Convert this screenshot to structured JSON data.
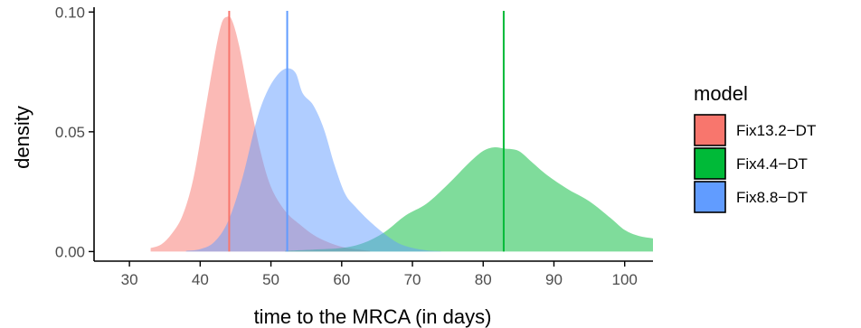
{
  "chart_data": {
    "type": "area",
    "title": "",
    "xlabel": "time to the MRCA (in days)",
    "ylabel": "density",
    "xlim": [
      25,
      104
    ],
    "ylim": [
      -0.004,
      0.102
    ],
    "xticks": [
      30,
      40,
      50,
      60,
      70,
      80,
      90,
      100
    ],
    "yticks": [
      0.0,
      0.05,
      0.1
    ],
    "ytick_labels": [
      "0.00",
      "0.05",
      "0.10"
    ],
    "grid": false,
    "legend": {
      "title": "model",
      "position": "right"
    },
    "series": [
      {
        "name": "Fix13.2−DT",
        "color": "#F8766D",
        "mean": 44.1,
        "points": [
          [
            33,
            0.0015
          ],
          [
            34.5,
            0.003
          ],
          [
            36,
            0.0075
          ],
          [
            37.5,
            0.015
          ],
          [
            39,
            0.03
          ],
          [
            40.5,
            0.055
          ],
          [
            42,
            0.081
          ],
          [
            43,
            0.095
          ],
          [
            43.8,
            0.098
          ],
          [
            44.5,
            0.0965
          ],
          [
            45.5,
            0.086
          ],
          [
            47,
            0.063
          ],
          [
            48.5,
            0.042
          ],
          [
            50,
            0.027
          ],
          [
            52,
            0.017
          ],
          [
            54,
            0.0115
          ],
          [
            56,
            0.007
          ],
          [
            58,
            0.004
          ],
          [
            60,
            0.002
          ],
          [
            62,
            0.001
          ],
          [
            64,
            0.0003
          ]
        ]
      },
      {
        "name": "Fix4.4−DT",
        "color": "#00BA38",
        "mean": 82.9,
        "points": [
          [
            52,
            0.0003
          ],
          [
            56,
            0.0008
          ],
          [
            60,
            0.0015
          ],
          [
            63,
            0.0035
          ],
          [
            66,
            0.008
          ],
          [
            69,
            0.015
          ],
          [
            72,
            0.02
          ],
          [
            75,
            0.028
          ],
          [
            78,
            0.037
          ],
          [
            80,
            0.042
          ],
          [
            81.5,
            0.0435
          ],
          [
            83,
            0.043
          ],
          [
            85,
            0.042
          ],
          [
            87,
            0.037
          ],
          [
            89,
            0.032
          ],
          [
            92,
            0.026
          ],
          [
            95,
            0.021
          ],
          [
            98,
            0.014
          ],
          [
            100,
            0.009
          ],
          [
            102,
            0.0065
          ],
          [
            104,
            0.0055
          ]
        ]
      },
      {
        "name": "Fix8.8−DT",
        "color": "#619CFF",
        "mean": 52.3,
        "points": [
          [
            38,
            0.0003
          ],
          [
            40,
            0.001
          ],
          [
            42,
            0.004
          ],
          [
            44,
            0.013
          ],
          [
            46,
            0.031
          ],
          [
            48,
            0.055
          ],
          [
            49.5,
            0.067
          ],
          [
            51,
            0.074
          ],
          [
            52.3,
            0.0765
          ],
          [
            53.5,
            0.0745
          ],
          [
            54.5,
            0.066
          ],
          [
            56,
            0.061
          ],
          [
            57.5,
            0.051
          ],
          [
            59,
            0.036
          ],
          [
            60.5,
            0.024
          ],
          [
            62,
            0.0185
          ],
          [
            64,
            0.0125
          ],
          [
            66,
            0.0075
          ],
          [
            68,
            0.0035
          ],
          [
            70,
            0.0015
          ],
          [
            72,
            0.0005
          ],
          [
            74,
            0.0002
          ]
        ]
      }
    ]
  }
}
